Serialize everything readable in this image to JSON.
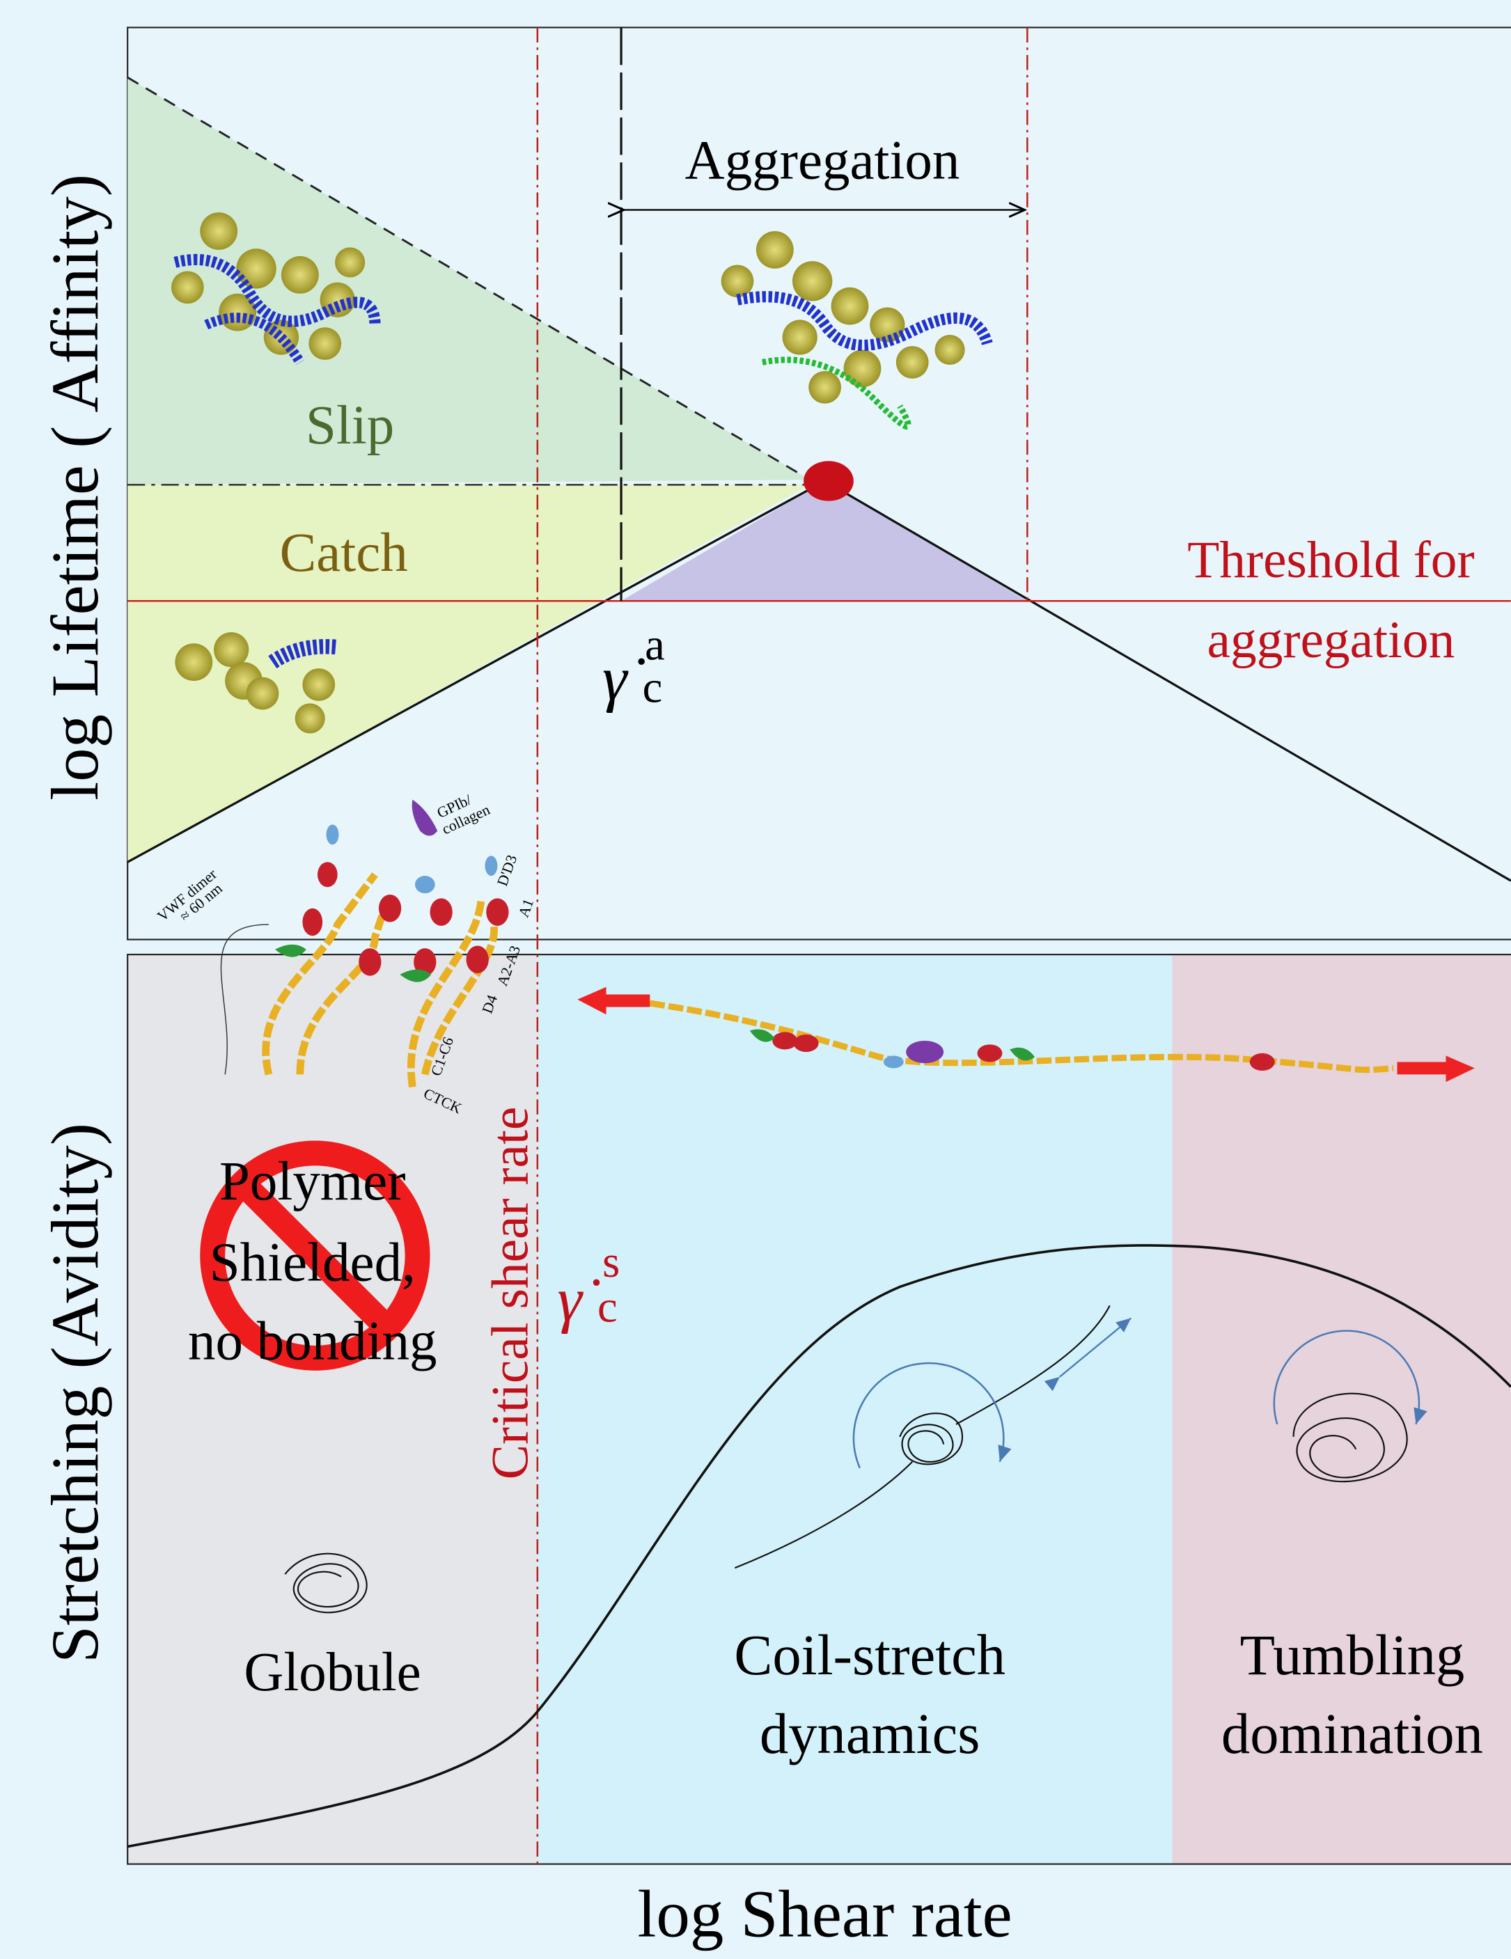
{
  "axes": {
    "top_y_label": "log Lifetime ( Affinity)",
    "bottom_y_label": "Stretching (Avidity)",
    "x_label": "log Shear rate"
  },
  "top_panel": {
    "aggregation": "Aggregation",
    "slip": "Slip",
    "catch": "Catch",
    "threshold": [
      "Threshold for",
      "aggregation"
    ],
    "gamma_a": {
      "symbol": "γ̇",
      "sub": "c",
      "sup": "a"
    }
  },
  "vwf": {
    "dimer": "VWF dimer",
    "size": "≈ 60 nm",
    "ligand": [
      "GPIb/",
      "collagen"
    ],
    "domains": [
      "D'D3",
      "A1",
      "D4",
      "A2-A3",
      "C1-C6",
      "CTCK"
    ]
  },
  "bottom_panel": {
    "shielded": [
      "Polymer",
      "Shielded,",
      "no bonding"
    ],
    "critical": "Critical shear rate",
    "gamma_s": {
      "symbol": "γ̇",
      "sub": "c",
      "sup": "s"
    },
    "globule": "Globule",
    "coil": [
      "Coil-stretch",
      "dynamics"
    ],
    "tumbling": [
      "Tumbling",
      "domination"
    ]
  }
}
